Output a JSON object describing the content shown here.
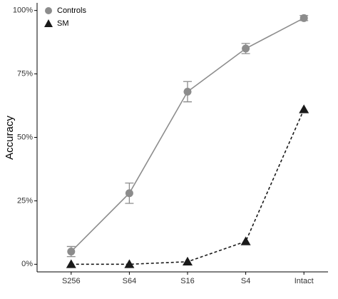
{
  "chart_data": {
    "type": "line",
    "y_label": "Accuracy",
    "categories": [
      "S256",
      "S64",
      "S16",
      "S4",
      "Intact"
    ],
    "series": [
      {
        "name": "Controls",
        "color": "#8c8c8c",
        "marker": "circle",
        "line_style": "solid",
        "values": [
          5,
          28,
          68,
          85,
          97
        ],
        "errors": [
          2,
          4,
          4,
          2,
          1
        ]
      },
      {
        "name": "SM",
        "color": "#1a1a1a",
        "marker": "triangle",
        "line_style": "dashed",
        "values": [
          0,
          0,
          1,
          9,
          61
        ]
      }
    ],
    "ylim": [
      -3,
      103
    ],
    "yticks": [
      {
        "value": 0,
        "label": "0%"
      },
      {
        "value": 25,
        "label": "25%"
      },
      {
        "value": 50,
        "label": "50%"
      },
      {
        "value": 75,
        "label": "75%"
      },
      {
        "value": 100,
        "label": "100%"
      }
    ],
    "legend": "top-left"
  }
}
